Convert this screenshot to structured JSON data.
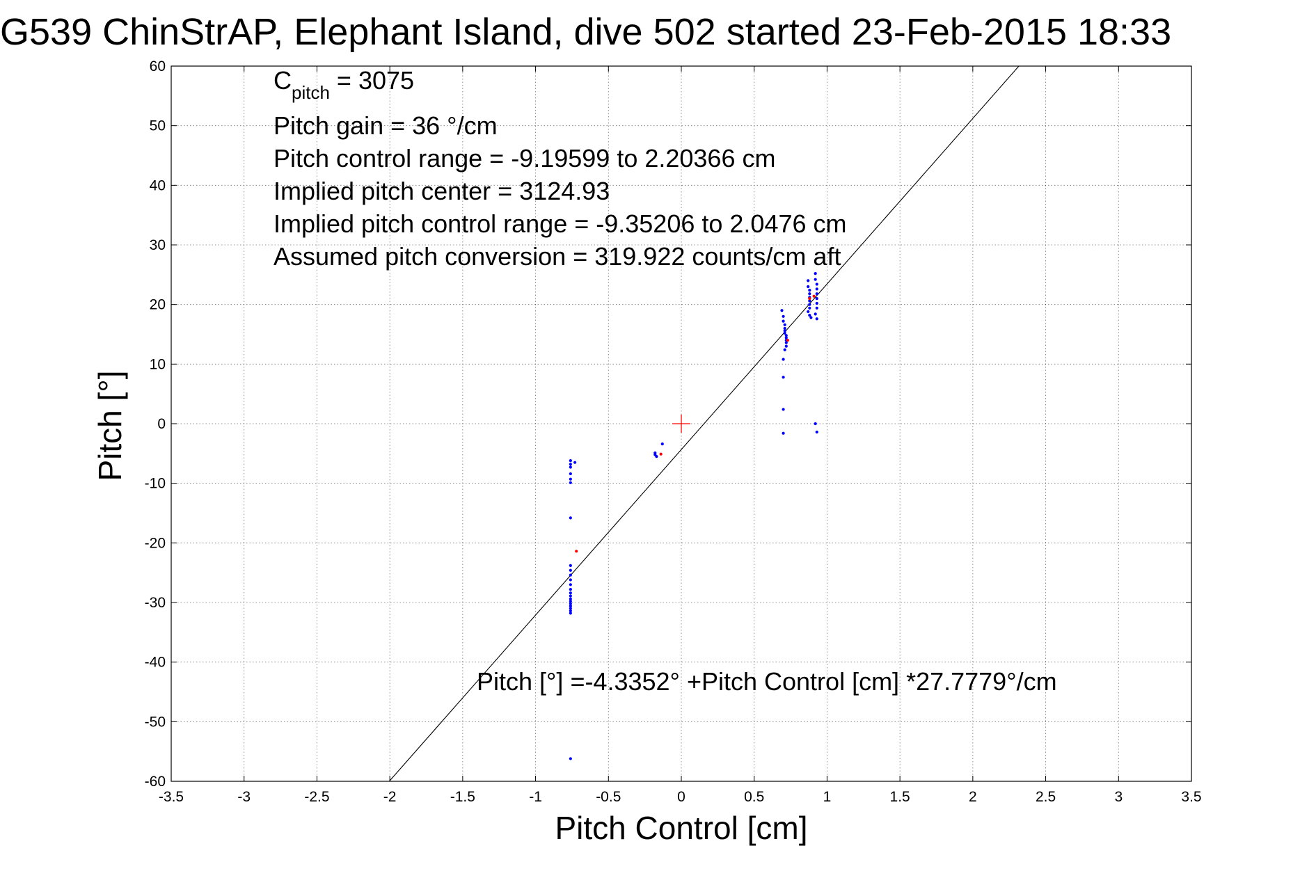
{
  "chart_data": {
    "type": "scatter",
    "title": "G539 ChinStrAP, Elephant Island, dive 502 started 23-Feb-2015 18:33",
    "xlabel": "Pitch Control [cm]",
    "ylabel": "Pitch [°]",
    "xlim": [
      -3.5,
      3.5
    ],
    "ylim": [
      -60,
      60
    ],
    "xticks": [
      -3.5,
      -3,
      -2.5,
      -2,
      -1.5,
      -1,
      -0.5,
      0,
      0.5,
      1,
      1.5,
      2,
      2.5,
      3,
      3.5
    ],
    "yticks": [
      -60,
      -50,
      -40,
      -30,
      -20,
      -10,
      0,
      10,
      20,
      30,
      40,
      50,
      60
    ],
    "xtick_labels": [
      "-3.5",
      "-3",
      "-2.5",
      "-2",
      "-1.5",
      "-1",
      "-0.5",
      "0",
      "0.5",
      "1",
      "1.5",
      "2",
      "2.5",
      "3",
      "3.5"
    ],
    "ytick_labels": [
      "-60",
      "-50",
      "-40",
      "-30",
      "-20",
      "-10",
      "0",
      "10",
      "20",
      "30",
      "40",
      "50",
      "60"
    ],
    "grid": true,
    "series": [
      {
        "color": "#0000ff",
        "marker": "dot",
        "points": [
          [
            -0.76,
            -6.2
          ],
          [
            -0.76,
            -6.8
          ],
          [
            -0.76,
            -7.3
          ],
          [
            -0.76,
            -8.4
          ],
          [
            -0.76,
            -9.3
          ],
          [
            -0.76,
            -9.9
          ],
          [
            -0.73,
            -6.5
          ],
          [
            -0.76,
            -15.8
          ],
          [
            -0.76,
            -23.8
          ],
          [
            -0.76,
            -24.6
          ],
          [
            -0.76,
            -25.4
          ],
          [
            -0.76,
            -26.2
          ],
          [
            -0.76,
            -27.0
          ],
          [
            -0.76,
            -27.8
          ],
          [
            -0.76,
            -28.4
          ],
          [
            -0.76,
            -28.9
          ],
          [
            -0.76,
            -29.4
          ],
          [
            -0.76,
            -29.8
          ],
          [
            -0.76,
            -30.2
          ],
          [
            -0.76,
            -30.6
          ],
          [
            -0.76,
            -31.0
          ],
          [
            -0.76,
            -31.4
          ],
          [
            -0.76,
            -31.8
          ],
          [
            -0.76,
            -56.2
          ],
          [
            -0.18,
            -4.9
          ],
          [
            -0.18,
            -5.2
          ],
          [
            -0.17,
            -5.5
          ],
          [
            -0.13,
            -3.4
          ],
          [
            0.69,
            19.0
          ],
          [
            0.7,
            18.0
          ],
          [
            0.7,
            17.2
          ],
          [
            0.71,
            16.6
          ],
          [
            0.71,
            16.0
          ],
          [
            0.71,
            15.6
          ],
          [
            0.71,
            15.2
          ],
          [
            0.72,
            14.8
          ],
          [
            0.72,
            14.4
          ],
          [
            0.72,
            14.0
          ],
          [
            0.72,
            13.6
          ],
          [
            0.72,
            13.0
          ],
          [
            0.71,
            12.4
          ],
          [
            0.7,
            10.8
          ],
          [
            0.7,
            7.8
          ],
          [
            0.7,
            2.4
          ],
          [
            0.7,
            -1.6
          ],
          [
            0.87,
            24.0
          ],
          [
            0.87,
            23.0
          ],
          [
            0.88,
            22.4
          ],
          [
            0.88,
            21.8
          ],
          [
            0.88,
            21.2
          ],
          [
            0.88,
            20.6
          ],
          [
            0.88,
            20.0
          ],
          [
            0.88,
            19.4
          ],
          [
            0.87,
            18.8
          ],
          [
            0.88,
            18.2
          ],
          [
            0.89,
            17.8
          ],
          [
            0.92,
            25.2
          ],
          [
            0.92,
            24.2
          ],
          [
            0.93,
            23.4
          ],
          [
            0.93,
            22.6
          ],
          [
            0.93,
            21.8
          ],
          [
            0.93,
            21.0
          ],
          [
            0.93,
            20.2
          ],
          [
            0.93,
            19.4
          ],
          [
            0.92,
            18.4
          ],
          [
            0.93,
            17.6
          ],
          [
            0.92,
            0.0
          ],
          [
            0.93,
            -1.4
          ]
        ]
      },
      {
        "color": "#ff0000",
        "marker": "dot",
        "points": [
          [
            -0.72,
            -21.4
          ],
          [
            -0.14,
            -5.1
          ],
          [
            0.73,
            14.0
          ],
          [
            0.91,
            21.4
          ],
          [
            0.88,
            21.0
          ]
        ]
      },
      {
        "color": "#ff0000",
        "marker": "plus",
        "points": [
          [
            0,
            0
          ]
        ]
      }
    ],
    "fit_line": {
      "intercept": -4.3352,
      "slope": 27.7779,
      "color": "#000000"
    },
    "annotations": {
      "c_pitch_main": "C",
      "c_pitch_sub": "pitch",
      "c_pitch_value": " = 3075",
      "pitch_gain": "Pitch gain = 36 °/cm",
      "pitch_control_range": "Pitch control range = -9.19599 to 2.20366 cm",
      "implied_pitch_center": "Implied pitch center = 3124.93",
      "implied_pitch_control_range": "Implied pitch control range = -9.35206 to 2.0476 cm",
      "assumed_pitch_conversion": "Assumed pitch conversion = 319.922 counts/cm aft",
      "fit_equation": "Pitch [°] =-4.3352° +Pitch Control [cm] *27.7779°/cm"
    }
  }
}
